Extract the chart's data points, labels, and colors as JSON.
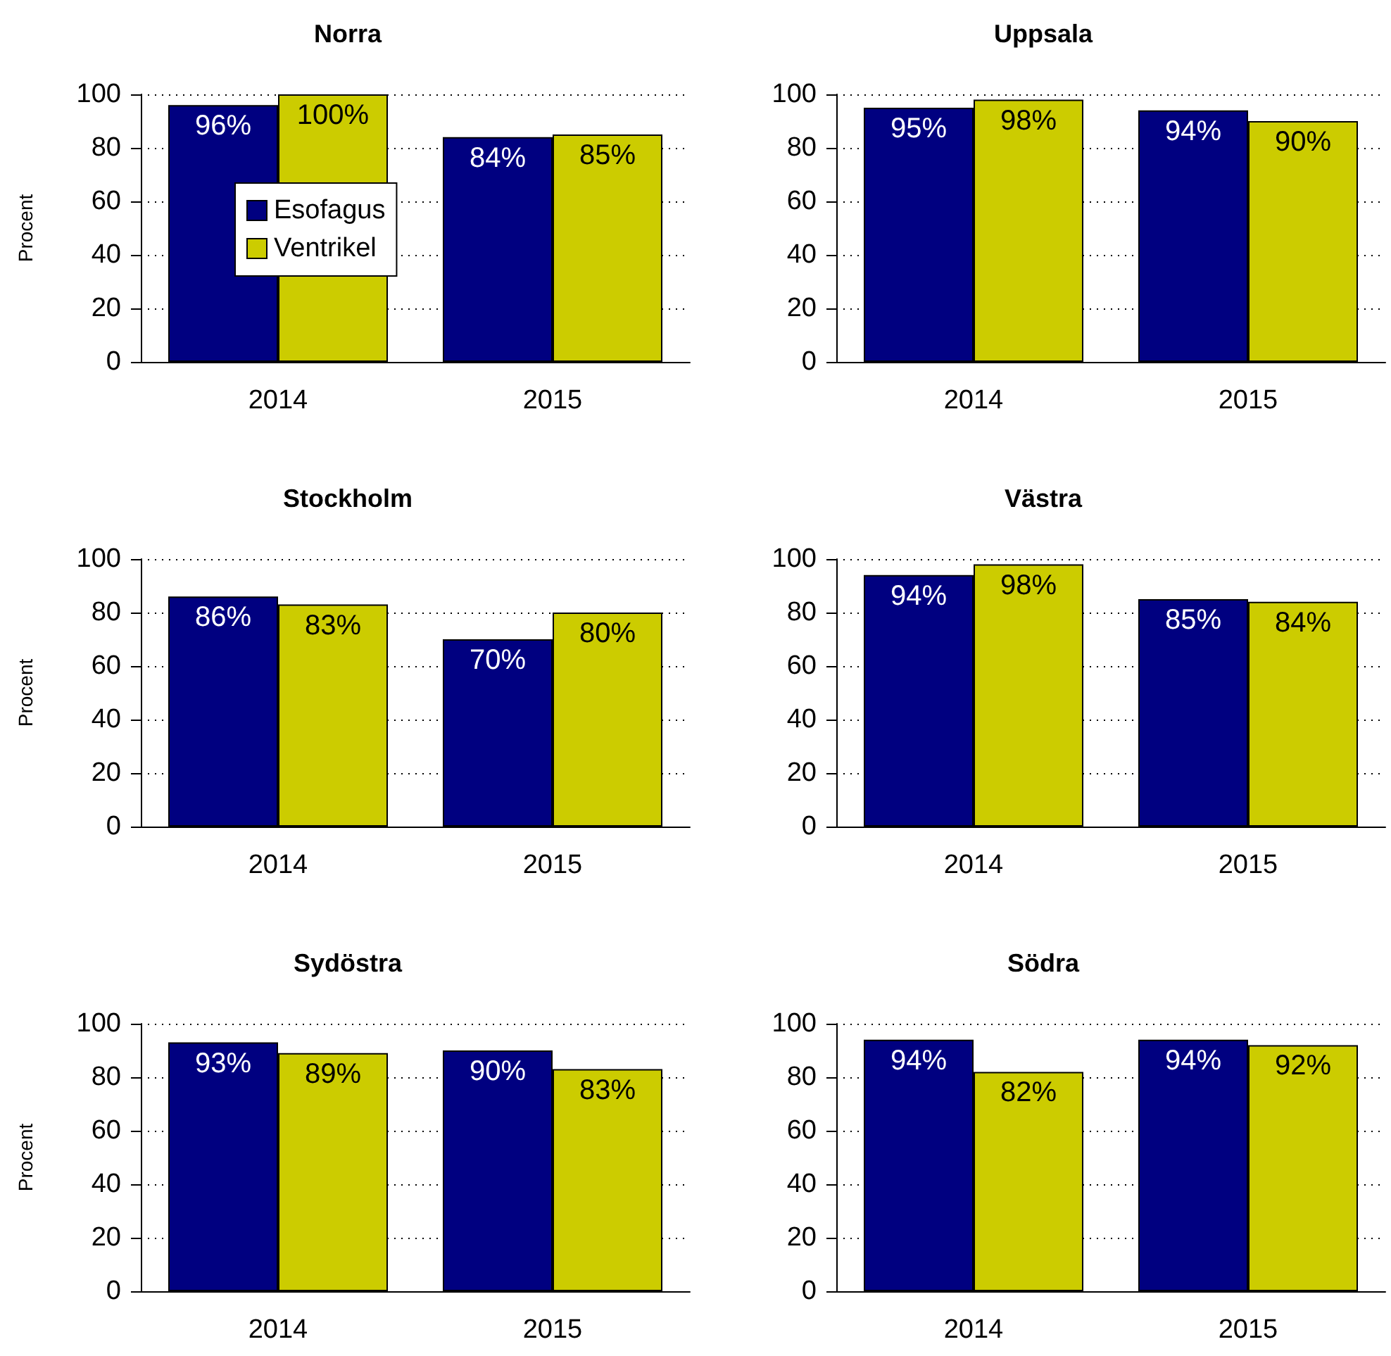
{
  "chart_data": [
    {
      "type": "bar",
      "title": "Norra",
      "ylabel": "Procent",
      "categories": [
        "2014",
        "2015"
      ],
      "ylim": [
        0,
        100
      ],
      "yticks": [
        0,
        20,
        40,
        60,
        80,
        100
      ],
      "grid": "y",
      "legend": "left",
      "series": [
        {
          "name": "Esofagus",
          "color": "#000080",
          "values": [
            96,
            84
          ],
          "value_labels": [
            "96%",
            "84%"
          ]
        },
        {
          "name": "Ventrikel",
          "color": "#cccc00",
          "values": [
            100,
            85
          ],
          "value_labels": [
            "100%",
            "85%"
          ]
        }
      ]
    },
    {
      "type": "bar",
      "title": "Uppsala",
      "categories": [
        "2014",
        "2015"
      ],
      "ylim": [
        0,
        100
      ],
      "yticks": [
        0,
        20,
        40,
        60,
        80,
        100
      ],
      "grid": "y",
      "series": [
        {
          "color": "#000080",
          "values": [
            95,
            94
          ],
          "value_labels": [
            "95%",
            "94%"
          ]
        },
        {
          "color": "#cccc00",
          "values": [
            98,
            90
          ],
          "value_labels": [
            "98%",
            "90%"
          ]
        }
      ]
    },
    {
      "type": "bar",
      "title": "Stockholm",
      "ylabel": "Procent",
      "categories": [
        "2014",
        "2015"
      ],
      "ylim": [
        0,
        100
      ],
      "yticks": [
        0,
        20,
        40,
        60,
        80,
        100
      ],
      "grid": "y",
      "series": [
        {
          "color": "#000080",
          "values": [
            86,
            70
          ],
          "value_labels": [
            "86%",
            "70%"
          ]
        },
        {
          "color": "#cccc00",
          "values": [
            83,
            80
          ],
          "value_labels": [
            "83%",
            "80%"
          ]
        }
      ]
    },
    {
      "type": "bar",
      "title": "Västra",
      "categories": [
        "2014",
        "2015"
      ],
      "ylim": [
        0,
        100
      ],
      "yticks": [
        0,
        20,
        40,
        60,
        80,
        100
      ],
      "grid": "y",
      "series": [
        {
          "color": "#000080",
          "values": [
            94,
            85
          ],
          "value_labels": [
            "94%",
            "85%"
          ]
        },
        {
          "color": "#cccc00",
          "values": [
            98,
            84
          ],
          "value_labels": [
            "98%",
            "84%"
          ]
        }
      ]
    },
    {
      "type": "bar",
      "title": "Sydöstra",
      "ylabel": "Procent",
      "categories": [
        "2014",
        "2015"
      ],
      "ylim": [
        0,
        100
      ],
      "yticks": [
        0,
        20,
        40,
        60,
        80,
        100
      ],
      "grid": "y",
      "series": [
        {
          "color": "#000080",
          "values": [
            93,
            90
          ],
          "value_labels": [
            "93%",
            "90%"
          ]
        },
        {
          "color": "#cccc00",
          "values": [
            89,
            83
          ],
          "value_labels": [
            "89%",
            "83%"
          ]
        }
      ]
    },
    {
      "type": "bar",
      "title": "Södra",
      "categories": [
        "2014",
        "2015"
      ],
      "ylim": [
        0,
        100
      ],
      "yticks": [
        0,
        20,
        40,
        60,
        80,
        100
      ],
      "grid": "y",
      "series": [
        {
          "color": "#000080",
          "values": [
            94,
            94
          ],
          "value_labels": [
            "94%",
            "94%"
          ]
        },
        {
          "color": "#cccc00",
          "values": [
            82,
            92
          ],
          "value_labels": [
            "82%",
            "92%"
          ]
        }
      ]
    }
  ]
}
